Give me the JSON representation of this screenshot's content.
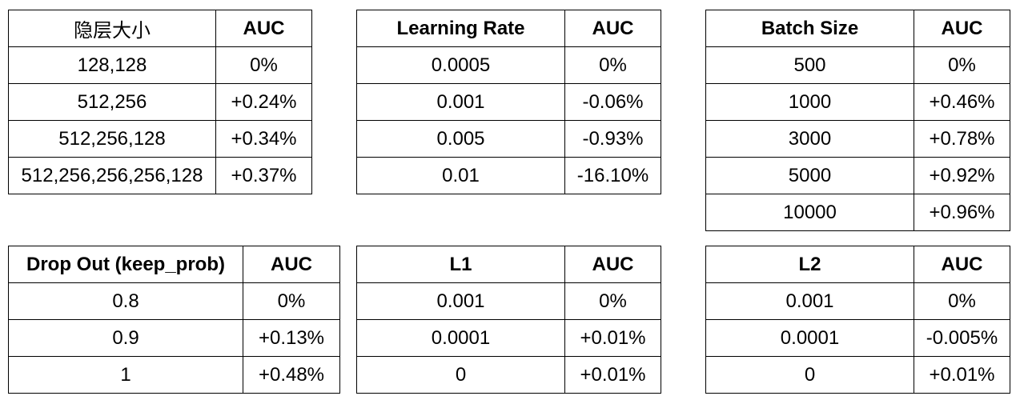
{
  "tables": [
    {
      "headers": [
        "隐层大小",
        "AUC"
      ],
      "rows": [
        [
          "128,128",
          "0%"
        ],
        [
          "512,256",
          "+0.24%"
        ],
        [
          "512,256,128",
          "+0.34%"
        ],
        [
          "512,256,256,256,128",
          "+0.37%"
        ]
      ]
    },
    {
      "headers": [
        "Learning Rate",
        "AUC"
      ],
      "rows": [
        [
          "0.0005",
          "0%"
        ],
        [
          "0.001",
          "-0.06%"
        ],
        [
          "0.005",
          "-0.93%"
        ],
        [
          "0.01",
          "-16.10%"
        ]
      ]
    },
    {
      "headers": [
        "Batch Size",
        "AUC"
      ],
      "rows": [
        [
          "500",
          "0%"
        ],
        [
          "1000",
          "+0.46%"
        ],
        [
          "3000",
          "+0.78%"
        ],
        [
          "5000",
          "+0.92%"
        ],
        [
          "10000",
          "+0.96%"
        ]
      ]
    },
    {
      "headers": [
        "Drop Out (keep_prob)",
        "AUC"
      ],
      "rows": [
        [
          "0.8",
          "0%"
        ],
        [
          "0.9",
          "+0.13%"
        ],
        [
          "1",
          "+0.48%"
        ]
      ]
    },
    {
      "headers": [
        "L1",
        "AUC"
      ],
      "rows": [
        [
          "0.001",
          "0%"
        ],
        [
          "0.0001",
          "+0.01%"
        ],
        [
          "0",
          "+0.01%"
        ]
      ]
    },
    {
      "headers": [
        "L2",
        "AUC"
      ],
      "rows": [
        [
          "0.001",
          "0%"
        ],
        [
          "0.0001",
          "-0.005%"
        ],
        [
          "0",
          "+0.01%"
        ]
      ]
    }
  ]
}
